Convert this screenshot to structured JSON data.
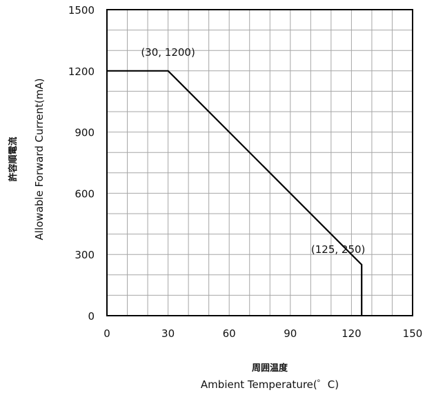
{
  "chart_data": {
    "type": "line",
    "xlabel_jp": "周囲温度",
    "xlabel": "Ambient Temperature(゜C)",
    "ylabel_jp": "許容順電流",
    "ylabel": "Allowable Forward Current(mA)",
    "xlim": [
      0,
      150
    ],
    "ylim": [
      0,
      1500
    ],
    "x_ticks": [
      0,
      30,
      60,
      90,
      120,
      150
    ],
    "y_ticks": [
      0,
      300,
      600,
      900,
      1200,
      1500
    ],
    "x_minor_step": 10,
    "y_minor_step": 100,
    "grid": true,
    "series": [
      {
        "x": [
          0,
          30,
          125,
          125
        ],
        "y": [
          1200,
          1200,
          250,
          0
        ]
      }
    ],
    "annotations": [
      {
        "text": "(30, 1200)",
        "x": 30,
        "y": 1200
      },
      {
        "text": "(125, 250)",
        "x": 125,
        "y": 250
      }
    ],
    "colors": {
      "line": "#000000",
      "grid": "#a6a6a6",
      "frame": "#000000"
    }
  }
}
